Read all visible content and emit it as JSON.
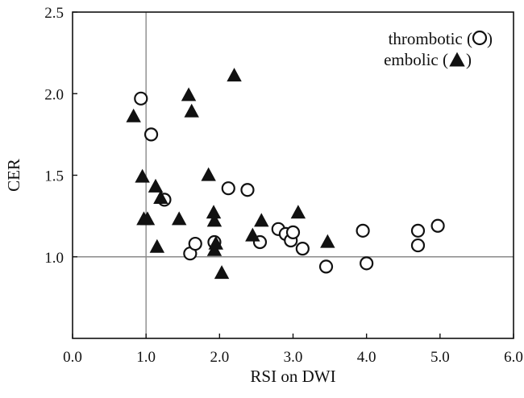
{
  "chart_data": {
    "type": "scatter",
    "title": "",
    "xlabel": "RSI on DWI",
    "ylabel": "CER",
    "xlim": [
      0.0,
      6.0
    ],
    "ylim": [
      0.5,
      2.5
    ],
    "x_ticks": [
      "0.0",
      "1.0",
      "2.0",
      "3.0",
      "4.0",
      "5.0",
      "6.0"
    ],
    "y_ticks": [
      "1.0",
      "1.5",
      "2.0",
      "2.5"
    ],
    "reference_lines": {
      "x": 1.0,
      "y": 1.0
    },
    "legend_position": "top-right",
    "series": [
      {
        "name": "thrombotic",
        "legend_label": "thrombotic (",
        "marker": "open-circle",
        "points": [
          [
            0.93,
            1.97
          ],
          [
            1.07,
            1.75
          ],
          [
            1.25,
            1.35
          ],
          [
            1.6,
            1.02
          ],
          [
            1.67,
            1.08
          ],
          [
            1.93,
            1.09
          ],
          [
            2.12,
            1.42
          ],
          [
            2.38,
            1.41
          ],
          [
            2.55,
            1.09
          ],
          [
            2.8,
            1.17
          ],
          [
            2.9,
            1.14
          ],
          [
            2.97,
            1.1
          ],
          [
            3.0,
            1.15
          ],
          [
            3.13,
            1.05
          ],
          [
            3.45,
            0.94
          ],
          [
            3.95,
            1.16
          ],
          [
            4.0,
            0.96
          ],
          [
            4.7,
            1.16
          ],
          [
            4.7,
            1.07
          ],
          [
            4.97,
            1.19
          ]
        ]
      },
      {
        "name": "embolic",
        "legend_label": "embolic (",
        "marker": "filled-triangle",
        "points": [
          [
            0.83,
            1.86
          ],
          [
            0.95,
            1.49
          ],
          [
            0.97,
            1.23
          ],
          [
            1.02,
            1.23
          ],
          [
            1.13,
            1.43
          ],
          [
            1.15,
            1.06
          ],
          [
            1.2,
            1.36
          ],
          [
            1.45,
            1.23
          ],
          [
            1.58,
            1.99
          ],
          [
            1.62,
            1.89
          ],
          [
            1.85,
            1.5
          ],
          [
            1.92,
            1.27
          ],
          [
            1.93,
            1.22
          ],
          [
            1.93,
            1.04
          ],
          [
            1.95,
            1.08
          ],
          [
            2.03,
            0.9
          ],
          [
            2.2,
            2.11
          ],
          [
            2.45,
            1.13
          ],
          [
            2.57,
            1.22
          ],
          [
            3.07,
            1.27
          ],
          [
            3.47,
            1.09
          ]
        ]
      }
    ]
  }
}
